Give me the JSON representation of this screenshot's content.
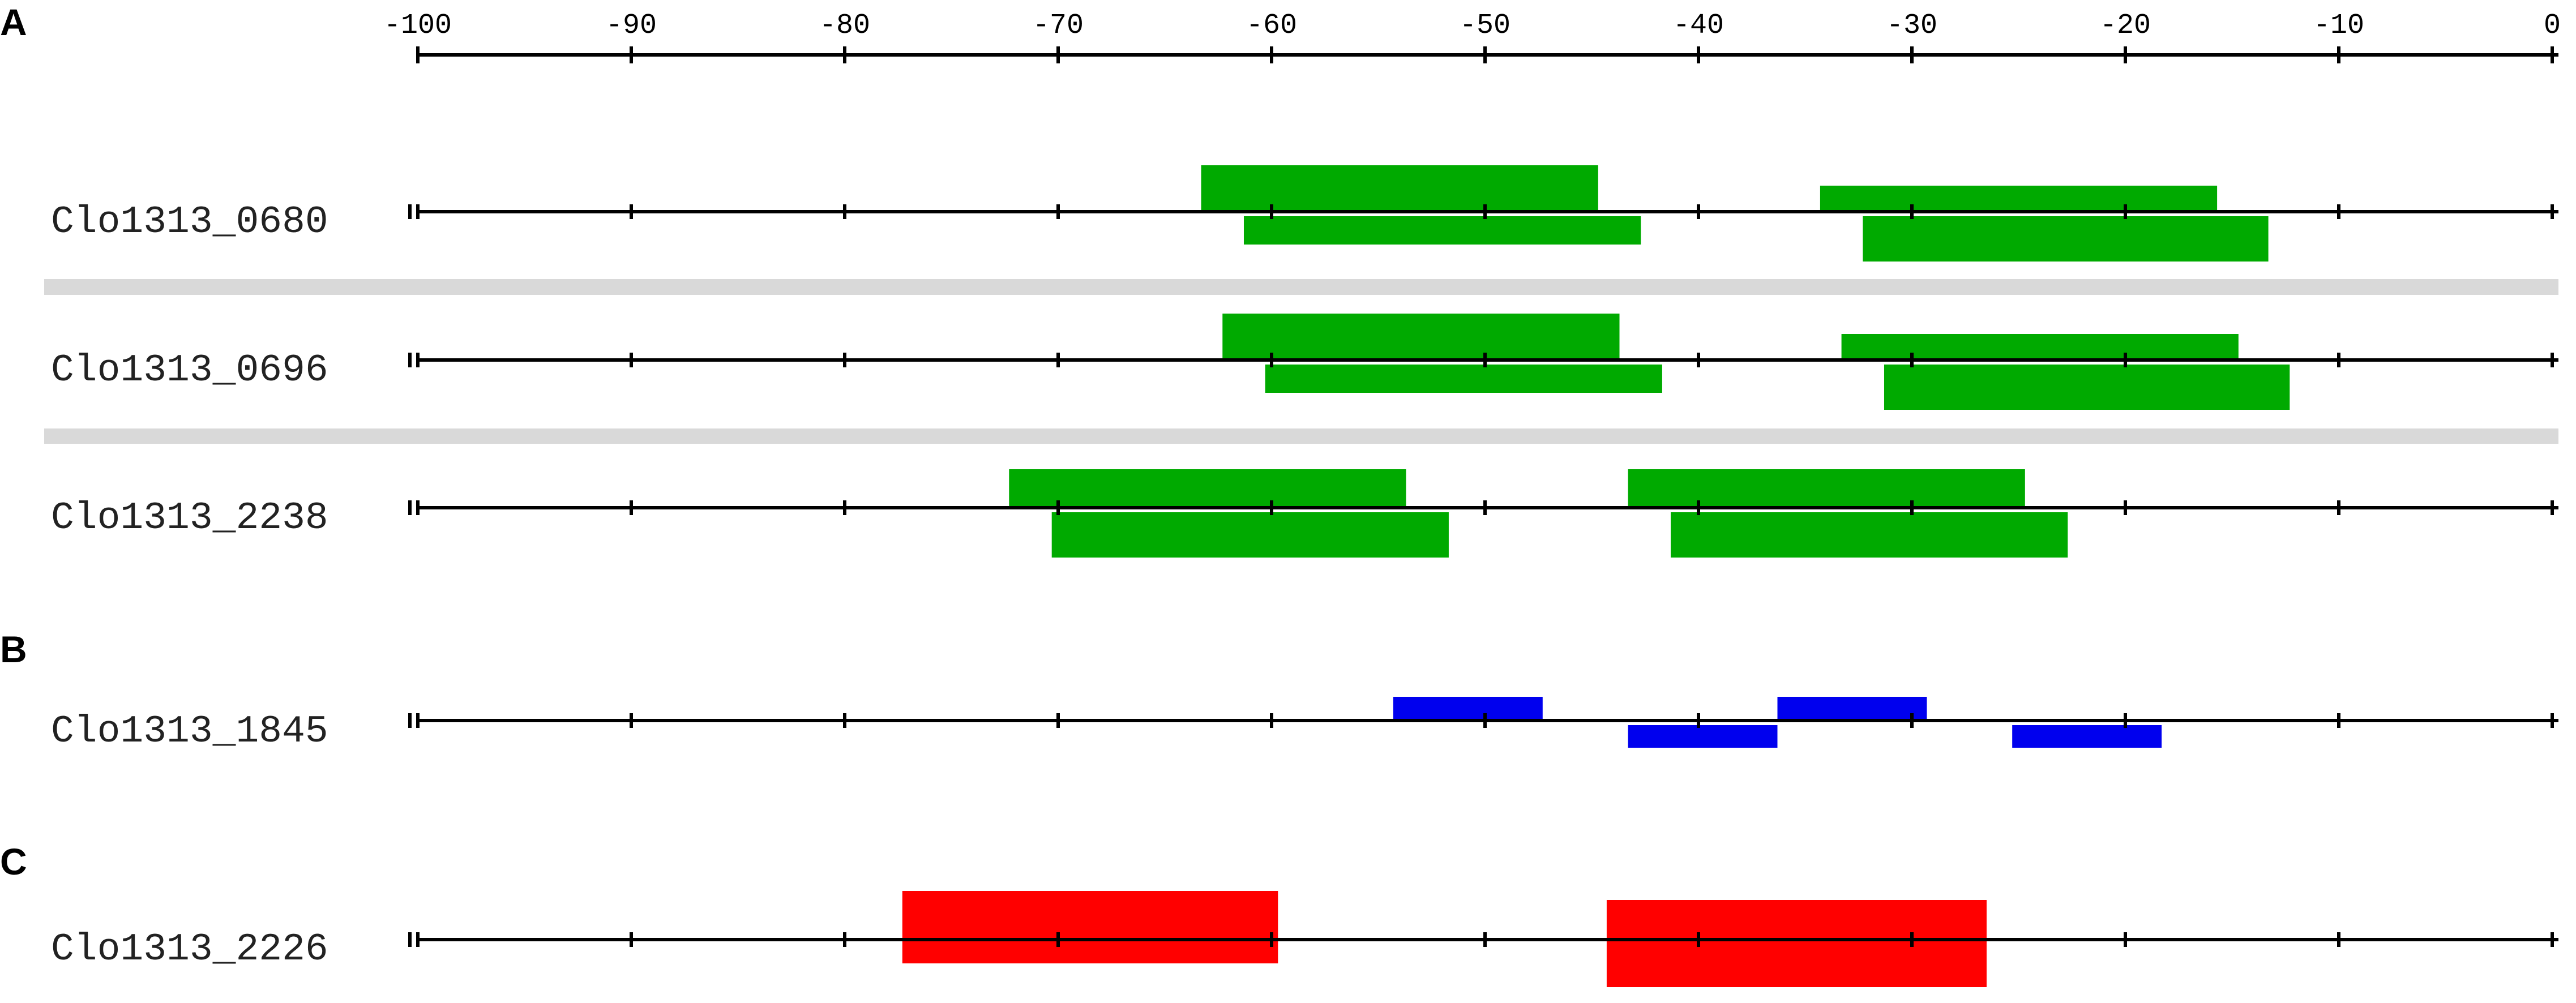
{
  "panel_letters": [
    "A",
    "B",
    "C"
  ],
  "axis": {
    "min": -100,
    "max": 0,
    "ticks": [
      -100,
      -90,
      -80,
      -70,
      -60,
      -50,
      -40,
      -30,
      -20,
      -10,
      0
    ],
    "tick_labels": [
      "-100",
      "-90",
      "-80",
      "-70",
      "-60",
      "-50",
      "-40",
      "-30",
      "-20",
      "-10",
      "0"
    ]
  },
  "colors": {
    "green": "#00aa00",
    "blue": "#0000ee",
    "red": "#ff0000",
    "separator": "#d9d9d9",
    "line": "#000000"
  },
  "tracks": [
    {
      "label": "Clo1313_0680",
      "panel": "A",
      "color": "green",
      "boxes": [
        {
          "start": -63.3,
          "end": -44.7,
          "strand": "top",
          "size": "large"
        },
        {
          "start": -61.3,
          "end": -42.7,
          "strand": "bottom",
          "size": "medium"
        },
        {
          "start": -34.3,
          "end": -15.7,
          "strand": "top",
          "size": "small"
        },
        {
          "start": -32.3,
          "end": -13.3,
          "strand": "bottom",
          "size": "large"
        }
      ]
    },
    {
      "label": "Clo1313_0696",
      "panel": "A",
      "color": "green",
      "boxes": [
        {
          "start": -62.3,
          "end": -43.7,
          "strand": "top",
          "size": "large"
        },
        {
          "start": -60.3,
          "end": -41.7,
          "strand": "bottom",
          "size": "medium"
        },
        {
          "start": -33.3,
          "end": -14.7,
          "strand": "top",
          "size": "small"
        },
        {
          "start": -31.3,
          "end": -12.3,
          "strand": "bottom",
          "size": "large"
        }
      ]
    },
    {
      "label": "Clo1313_2238",
      "panel": "A",
      "color": "green",
      "boxes": [
        {
          "start": -72.3,
          "end": -53.7,
          "strand": "top",
          "size": "medium"
        },
        {
          "start": -70.3,
          "end": -51.7,
          "strand": "bottom",
          "size": "large"
        },
        {
          "start": -43.3,
          "end": -24.7,
          "strand": "top",
          "size": "medium"
        },
        {
          "start": -41.3,
          "end": -22.7,
          "strand": "bottom",
          "size": "large"
        }
      ]
    },
    {
      "label": "Clo1313_1845",
      "panel": "B",
      "color": "blue",
      "boxes": [
        {
          "start": -54.3,
          "end": -47.3,
          "strand": "top",
          "size": "medium"
        },
        {
          "start": -43.3,
          "end": -36.3,
          "strand": "bottom",
          "size": "medium"
        },
        {
          "start": -36.3,
          "end": -29.3,
          "strand": "top",
          "size": "medium"
        },
        {
          "start": -25.3,
          "end": -18.3,
          "strand": "bottom",
          "size": "medium"
        }
      ]
    },
    {
      "label": "Clo1313_2226",
      "panel": "C",
      "color": "red",
      "boxes": [
        {
          "start": -77.3,
          "end": -59.7,
          "strand": "center",
          "size": "tall"
        },
        {
          "start": -44.3,
          "end": -26.5,
          "strand": "center",
          "size": "tall-offset"
        }
      ]
    }
  ]
}
